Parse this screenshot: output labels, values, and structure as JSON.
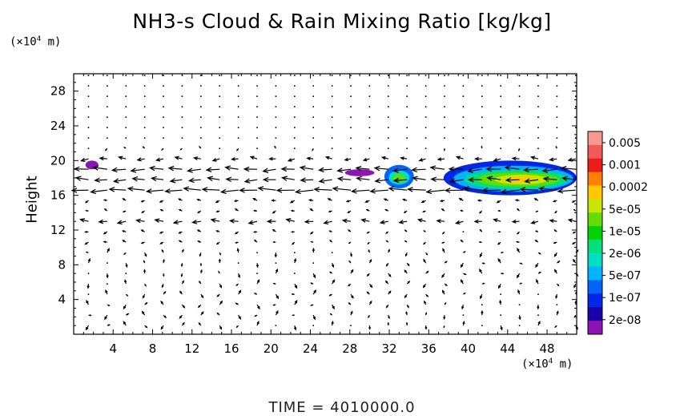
{
  "chart_data": {
    "type": "heatmap",
    "title": "NH3-s Cloud & Rain Mixing Ratio [kg/kg]",
    "ylabel": "Height",
    "y_unit_prefix": "(×10",
    "y_unit_exp": "4",
    "y_unit_suffix": " m)",
    "x_unit_prefix": "(×10",
    "x_unit_exp": "4",
    "x_unit_suffix": " m)",
    "xlim": [
      0,
      51
    ],
    "ylim": [
      0,
      30
    ],
    "xticks": [
      4,
      8,
      12,
      16,
      20,
      24,
      28,
      32,
      36,
      40,
      44,
      48
    ],
    "yticks": [
      4,
      8,
      12,
      16,
      20,
      24,
      28
    ],
    "colorbar": {
      "labels": [
        "0.005",
        "0.001",
        "0.0002",
        "5e-05",
        "1e-05",
        "2e-06",
        "5e-07",
        "1e-07",
        "2e-08"
      ],
      "colors_top_to_bottom": [
        "#f49a8e",
        "#f25a5a",
        "#ee1b1b",
        "#ff7f00",
        "#ffc800",
        "#c8e600",
        "#64dc00",
        "#00d200",
        "#00e07a",
        "#00e0c0",
        "#00b4ff",
        "#0064ff",
        "#0028e6",
        "#1a00a8",
        "#8c14b4"
      ]
    },
    "clouds": [
      {
        "x": [
          1.2,
          2.5
        ],
        "y": [
          19.0,
          20.0
        ],
        "level": "2e-08"
      },
      {
        "x": [
          27.5,
          30.5
        ],
        "y": [
          18.2,
          19.0
        ],
        "level": "2e-08"
      },
      {
        "x": [
          31.5,
          34.5
        ],
        "y": [
          16.8,
          19.5
        ],
        "level": "5e-05"
      },
      {
        "x": [
          37.5,
          51
        ],
        "y": [
          16.0,
          20.0
        ],
        "level": "0.0002"
      }
    ],
    "time_label": "TIME = 4010000.0"
  }
}
